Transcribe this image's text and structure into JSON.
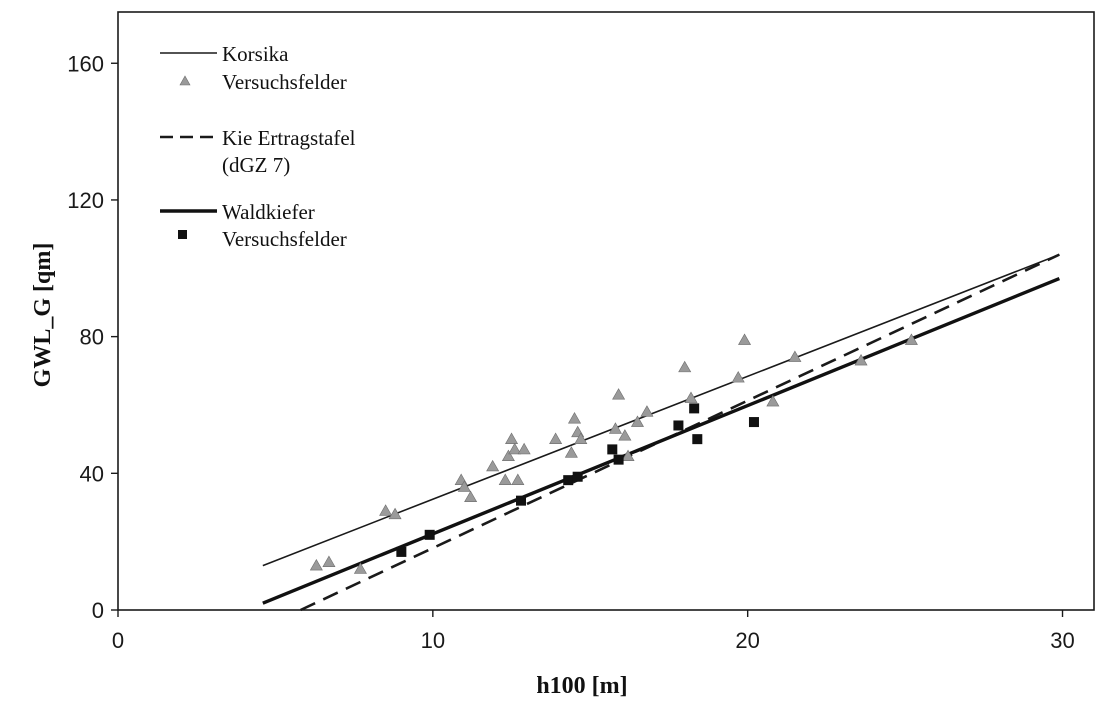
{
  "chart_data": {
    "type": "scatter",
    "title": "",
    "xlabel": "h100 [m]",
    "ylabel": "GWL_G [qm]",
    "xlim": [
      0,
      31
    ],
    "ylim": [
      0,
      175
    ],
    "xticks": [
      0,
      10,
      20,
      30
    ],
    "yticks": [
      0,
      40,
      80,
      120,
      160
    ],
    "grid": false,
    "legend_position": "top-left",
    "colors": {
      "korsika_points": "#9a9a9a",
      "korsika_line": "#1a1a1a",
      "ertragstafel_line": "#1a1a1a",
      "waldkiefer_line": "#111111",
      "waldkiefer_points": "#111111"
    },
    "legend": [
      {
        "label": "Korsika",
        "symbol": "thin-line"
      },
      {
        "label": "Versuchsfelder",
        "symbol": "triangle"
      },
      {
        "label": "Kie Ertragstafel",
        "label2": "(dGZ 7)",
        "symbol": "dashed-line"
      },
      {
        "label": "Waldkiefer",
        "symbol": "thick-line"
      },
      {
        "label": "Versuchsfelder",
        "symbol": "square"
      }
    ],
    "lines": [
      {
        "name": "Korsika",
        "style": "thin",
        "x": [
          4.6,
          29.9
        ],
        "y": [
          13,
          104
        ]
      },
      {
        "name": "Kie Ertragstafel (dGZ 7)",
        "style": "dashed",
        "x": [
          5.8,
          29.9
        ],
        "y": [
          0,
          104
        ]
      },
      {
        "name": "Waldkiefer",
        "style": "thick",
        "x": [
          4.6,
          29.9
        ],
        "y": [
          2,
          97
        ]
      }
    ],
    "series": [
      {
        "name": "Versuchsfelder",
        "marker": "triangle",
        "x": [
          6.3,
          6.7,
          7.7,
          8.5,
          8.8,
          10.9,
          11.0,
          11.2,
          11.9,
          12.3,
          12.4,
          12.5,
          12.6,
          12.7,
          12.9,
          13.9,
          14.4,
          14.5,
          14.6,
          14.7,
          15.8,
          15.9,
          16.1,
          16.2,
          16.5,
          16.8,
          18.0,
          18.2,
          19.7,
          19.9,
          20.8,
          21.5,
          23.6,
          25.2
        ],
        "y": [
          13,
          14,
          12,
          29,
          28,
          38,
          36,
          33,
          42,
          38,
          45,
          50,
          47,
          38,
          47,
          50,
          46,
          56,
          52,
          50,
          53,
          63,
          51,
          45,
          55,
          58,
          71,
          62,
          68,
          79,
          61,
          74,
          73,
          79
        ]
      },
      {
        "name": "Versuchsfelder",
        "marker": "square",
        "x": [
          9.0,
          9.9,
          12.8,
          14.3,
          14.6,
          15.7,
          15.9,
          17.8,
          18.3,
          18.4,
          20.2
        ],
        "y": [
          17,
          22,
          32,
          38,
          39,
          47,
          44,
          54,
          59,
          50,
          55
        ]
      }
    ]
  }
}
